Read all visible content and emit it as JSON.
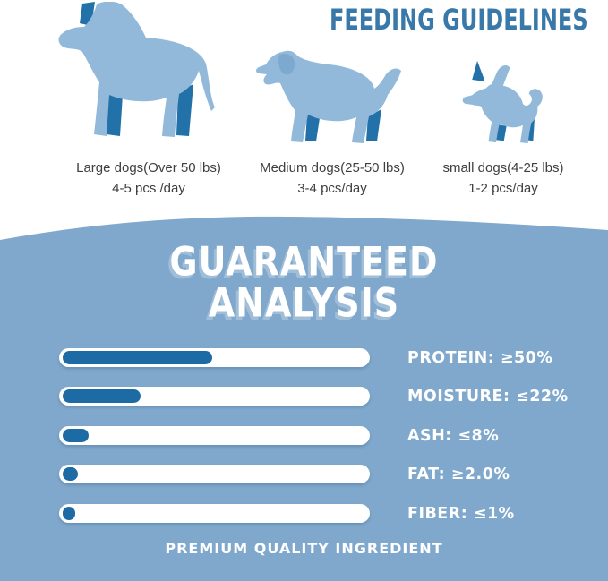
{
  "header": {
    "title": "FEEDING GUIDELINES"
  },
  "colors": {
    "title": "#3879a9",
    "section_bg": "#7fa8cc",
    "bar_track": "#ffffff",
    "bar_fill": "#1d6ba4",
    "dog_light": "#92b9da",
    "dog_mid": "#7da9cf",
    "dog_dark": "#2272a9",
    "caption_text": "#3e3e3e",
    "analysis_text": "#ffffff"
  },
  "feeding": {
    "dogs": [
      {
        "id": "large",
        "label": "Large dogs(Over 50 lbs)",
        "amount": "4-5 pcs /day"
      },
      {
        "id": "medium",
        "label": "Medium dogs(25-50 lbs)",
        "amount": "3-4 pcs/day"
      },
      {
        "id": "small",
        "label": "small dogs(4-25 lbs)",
        "amount": "1-2 pcs/day"
      }
    ]
  },
  "analysis": {
    "title_line1": "GUARANTEED",
    "title_line2": "ANALYSIS",
    "items": [
      {
        "label": "PROTEIN: ≥50%",
        "fill_pct": 48
      },
      {
        "label": "MOISTURE: ≤22%",
        "fill_pct": 25
      },
      {
        "label": "ASH: ≤8%",
        "fill_pct": 8.5
      },
      {
        "label": "FAT: ≥2.0%",
        "fill_pct": 5
      },
      {
        "label": "FIBER: ≤1%",
        "fill_pct": 4
      }
    ],
    "footer": "PREMIUM QUALITY INGREDIENT"
  },
  "chart_data": [
    {
      "type": "table",
      "title": "FEEDING GUIDELINES",
      "categories": [
        "Large dogs(Over 50 lbs)",
        "Medium dogs(25-50 lbs)",
        "small dogs(4-25 lbs)"
      ],
      "values": [
        "4-5 pcs /day",
        "3-4 pcs/day",
        "1-2 pcs/day"
      ]
    },
    {
      "type": "bar",
      "title": "GUARANTEED ANALYSIS",
      "orientation": "horizontal",
      "categories": [
        "PROTEIN",
        "MOISTURE",
        "ASH",
        "FAT",
        "FIBER"
      ],
      "values": [
        50,
        22,
        8,
        2.0,
        1
      ],
      "value_labels": [
        "≥50%",
        "≤22%",
        "≤8%",
        "≥2.0%",
        "≤1%"
      ],
      "bar_fill_fraction_of_track": [
        0.48,
        0.25,
        0.085,
        0.05,
        0.04
      ],
      "legend": false,
      "grid": false,
      "annotation": "PREMIUM QUALITY INGREDIENT"
    }
  ]
}
